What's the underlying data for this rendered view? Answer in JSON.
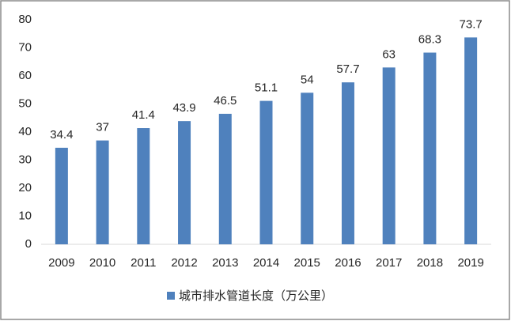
{
  "chart_data": {
    "type": "bar",
    "categories": [
      "2009",
      "2010",
      "2011",
      "2012",
      "2013",
      "2014",
      "2015",
      "2016",
      "2017",
      "2018",
      "2019"
    ],
    "series": [
      {
        "name": "城市排水管道长度（万公里）",
        "color": "#4f81bd",
        "values": [
          34.4,
          37,
          41.4,
          43.9,
          46.5,
          51.1,
          54,
          57.7,
          63,
          68.3,
          73.7
        ]
      }
    ],
    "ylim": [
      0,
      80
    ],
    "yticks": [
      0,
      10,
      20,
      30,
      40,
      50,
      60,
      70,
      80
    ],
    "grid": false,
    "legend": "bottom"
  }
}
